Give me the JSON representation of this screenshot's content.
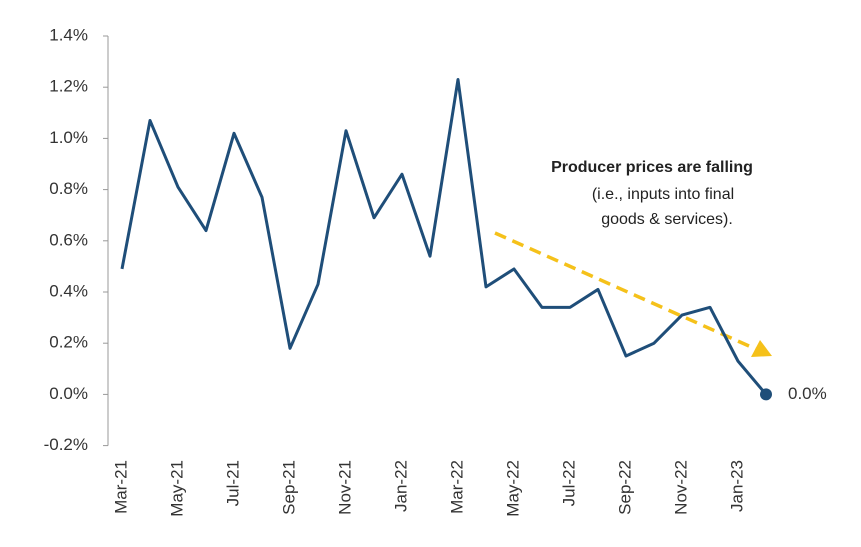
{
  "chart_data": {
    "type": "line",
    "categories": [
      "Mar-21",
      null,
      "May-21",
      null,
      "Jul-21",
      null,
      "Sep-21",
      null,
      "Nov-21",
      null,
      "Jan-22",
      null,
      "Mar-22",
      null,
      "May-22",
      null,
      "Jul-22",
      null,
      "Sep-22",
      null,
      "Nov-22",
      null,
      "Jan-23",
      null
    ],
    "series": [
      {
        "color": "#1f4e79",
        "values": [
          0.49,
          1.07,
          0.81,
          0.64,
          1.02,
          0.77,
          0.18,
          0.43,
          1.03,
          0.69,
          0.86,
          0.54,
          1.23,
          0.42,
          0.49,
          0.34,
          0.34,
          0.41,
          0.15,
          0.2,
          0.31,
          0.34,
          0.13,
          0.0
        ],
        "value_labels": [
          null,
          null,
          null,
          null,
          null,
          null,
          null,
          null,
          null,
          null,
          null,
          null,
          null,
          null,
          null,
          null,
          null,
          null,
          null,
          null,
          null,
          null,
          null,
          "0.0%"
        ]
      }
    ],
    "ylim": [
      -0.2,
      1.4
    ],
    "yticks": [
      {
        "value": -0.2,
        "label": "-0.2%"
      },
      {
        "value": 0,
        "label": "0.0%"
      },
      {
        "value": 0.2,
        "label": "0.2%"
      },
      {
        "value": 0.4,
        "label": "0.4%"
      },
      {
        "value": 0.6,
        "label": "0.6%"
      },
      {
        "value": 0.8,
        "label": "0.8%"
      },
      {
        "value": 1.0,
        "label": "1.0%"
      },
      {
        "value": 1.2,
        "label": "1.2%"
      },
      {
        "value": 1.4,
        "label": "1.4%"
      }
    ],
    "annotations": [
      "Producer prices are falling",
      "(i.e., inputs into final",
      "goods & services)."
    ],
    "trend_color": "#f5c11a"
  }
}
